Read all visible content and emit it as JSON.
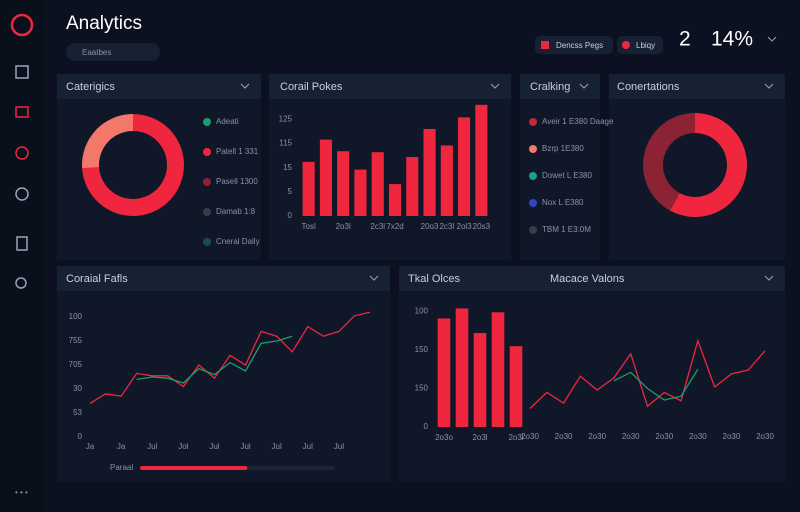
{
  "header": {
    "title": "Analytics",
    "search": "Eaatbes",
    "buttons": [
      "Dencss Pegs",
      "Lbiqy"
    ],
    "stats": [
      "2",
      "14%"
    ]
  },
  "chart_data": [
    {
      "type": "pie",
      "title": "Caterigics",
      "values": [
        74,
        26
      ],
      "colors": [
        "#f0263f",
        "#f4776b"
      ],
      "legend": [
        {
          "label": "Adeati",
          "color": "#1e9c6e"
        },
        {
          "label": "Patell 1 331",
          "color": "#f0263f"
        },
        {
          "label": "Pasell 1300",
          "color": "#8b2335"
        },
        {
          "label": "Damab 1:8",
          "color": "#3a3c46"
        },
        {
          "label": "Cneral Daily",
          "color": "#1d4c4a"
        }
      ]
    },
    {
      "type": "bar",
      "title": "Corail Pokes",
      "categories": [
        "Tosl",
        null,
        "2o3l",
        null,
        "2c3l",
        "7x2d",
        null,
        "20o3",
        "2c3l",
        "2ol3",
        "20s3"
      ],
      "values": [
        56,
        79,
        67,
        48,
        66,
        33,
        61,
        90,
        73,
        102,
        115
      ],
      "color": "#f0263f",
      "ylim": [
        0,
        120
      ],
      "yticks": [
        0,
        {
          "value": 25,
          "label": "5"
        },
        {
          "value": 50,
          "label": "15"
        },
        {
          "value": 75,
          "label": "115"
        },
        {
          "value": 100,
          "label": "125"
        }
      ]
    },
    {
      "type": "legend",
      "title": "Cralking",
      "items": [
        {
          "label": "Aveir 1 E380 Daage",
          "color": "#c8243a"
        },
        {
          "label": "Bzrp 1E380",
          "color": "#f4776b"
        },
        {
          "label": "Dowet L E380",
          "color": "#1e9c8e"
        },
        {
          "label": "Nox L E380",
          "color": "#3444c0"
        },
        {
          "label": "TBM 1 E3:0M",
          "color": "#3a3c46"
        }
      ]
    },
    {
      "type": "pie",
      "title": "Conertations",
      "values": [
        58,
        42
      ],
      "colors": [
        "#f0263f",
        "#8b2335"
      ]
    },
    {
      "type": "line",
      "title": "Coraial Fafls",
      "categories": [
        "Ja",
        null,
        "Ja",
        null,
        "Jul",
        null,
        "Jol",
        null,
        "Jul",
        null,
        "Jul",
        null,
        "Jul",
        null,
        "Jul",
        null,
        "Jul",
        null,
        null
      ],
      "series": [
        {
          "name": "Red",
          "color": "#f0263f",
          "values": [
            28,
            36,
            34,
            53,
            51,
            51,
            42,
            60,
            49,
            68,
            60,
            88,
            84,
            71,
            92,
            84,
            88,
            101,
            104
          ]
        },
        {
          "name": "Green",
          "color": "#1e9c6e",
          "values": [
            null,
            null,
            null,
            48,
            50,
            49,
            45,
            57,
            52,
            62,
            55,
            78,
            80,
            84,
            null,
            null,
            null,
            null,
            null
          ]
        }
      ],
      "ylim": [
        0,
        110
      ],
      "yticks": [
        0,
        {
          "value": 20,
          "label": "53"
        },
        {
          "value": 40,
          "label": "30"
        },
        {
          "value": 60,
          "label": "705"
        },
        {
          "value": 80,
          "label": "755"
        },
        100
      ],
      "progress": {
        "label": "Paraal",
        "value": 55
      }
    },
    {
      "type": "bar",
      "title": "Tkal Olces",
      "categories": [
        "2o3o",
        null,
        "2o3l",
        null,
        "2o3l"
      ],
      "values": [
        141,
        154,
        122,
        149,
        105
      ],
      "color": "#f0263f",
      "ylim": [
        0,
        165
      ],
      "yticks": [
        0,
        {
          "value": 50,
          "label": "150"
        },
        {
          "value": 100,
          "label": "150"
        },
        {
          "value": 150,
          "label": "100"
        }
      ]
    },
    {
      "type": "line",
      "title": "Macace Valons",
      "categories": [
        "2o30",
        null,
        "2o30",
        null,
        "2o30",
        null,
        "2o30",
        null,
        "2o30",
        null,
        "2o30",
        null,
        "2o30",
        null,
        "2o30"
      ],
      "series": [
        {
          "name": "Red",
          "color": "#f0263f",
          "values": [
            24,
            45,
            31,
            66,
            48,
            64,
            95,
            27,
            45,
            34,
            112,
            52,
            69,
            74,
            99
          ]
        },
        {
          "name": "Green",
          "color": "#1e9c6e",
          "values": [
            null,
            null,
            null,
            null,
            null,
            60,
            71,
            50,
            35,
            40,
            75,
            null,
            null,
            null,
            null
          ]
        }
      ],
      "ylim": [
        0,
        165
      ]
    }
  ]
}
